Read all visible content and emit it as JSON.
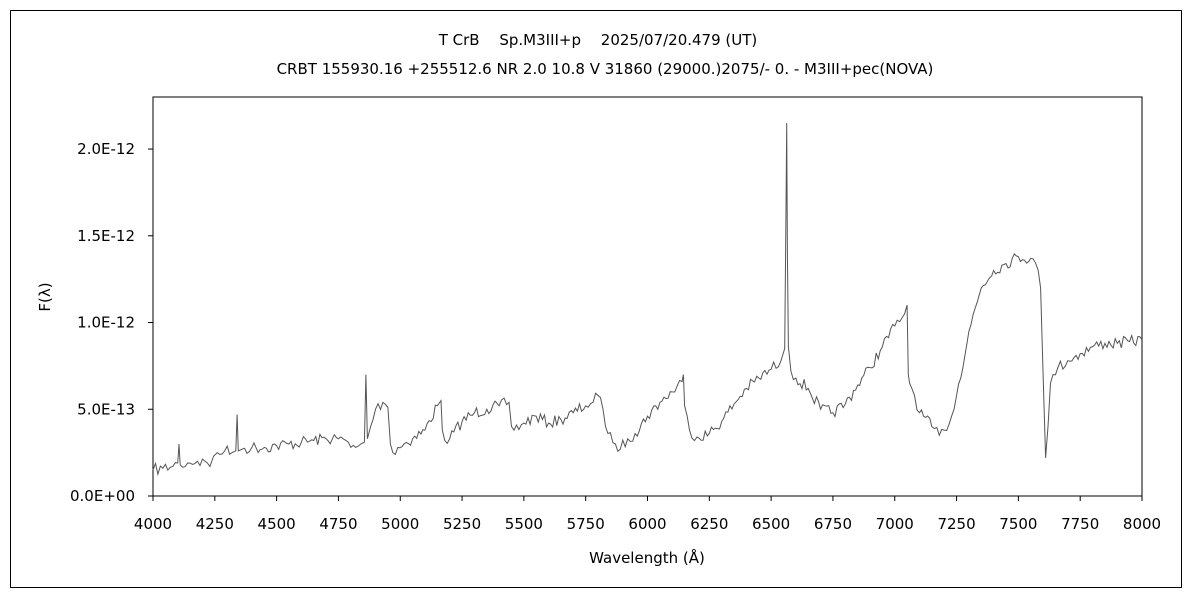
{
  "chart_data": {
    "type": "line",
    "title": "T CrB　 Sp.M3III+p　 2025/07/20.479 (UT)",
    "subtitle": "CRBT 155930.16 +255512.6 NR 2.0 10.8 V 31860 (29000.)2075/-  0. - M3III+pec(NOVA)",
    "xlabel": "Wavelength (Å)",
    "ylabel": "F(λ)",
    "xlim": [
      4000,
      8000
    ],
    "ylim": [
      0,
      2.3e-12
    ],
    "x_ticks": [
      4000,
      4250,
      4500,
      4750,
      5000,
      5250,
      5500,
      5750,
      6000,
      6250,
      6500,
      6750,
      7000,
      7250,
      7500,
      7750,
      8000
    ],
    "x_tick_labels": [
      "4000",
      "4250",
      "4500",
      "4750",
      "5000",
      "5250",
      "5500",
      "5750",
      "6000",
      "6250",
      "6500",
      "6750",
      "7000",
      "7250",
      "7500",
      "7750",
      "8000"
    ],
    "y_ticks": [
      0,
      5e-13,
      1e-12,
      1.5e-12,
      2e-12
    ],
    "y_tick_labels": [
      "0.0E+00",
      "5.0E-13",
      "1.0E-12",
      "1.5E-12",
      "2.0E-12"
    ],
    "grid": false,
    "line_color": "#555555",
    "series": [
      {
        "x": [
          4000,
          4040,
          4080,
          4100,
          4105,
          4110,
          4140,
          4180,
          4220,
          4230,
          4245,
          4260,
          4290,
          4320,
          4335,
          4340,
          4345,
          4360,
          4400,
          4450,
          4500,
          4550,
          4600,
          4650,
          4700,
          4750,
          4790,
          4800,
          4820,
          4840,
          4855,
          4861,
          4867,
          4880,
          4900,
          4930,
          4950,
          4960,
          4970,
          4990,
          5050,
          5100,
          5150,
          5165,
          5170,
          5180,
          5200,
          5250,
          5300,
          5350,
          5400,
          5440,
          5450,
          5460,
          5500,
          5550,
          5600,
          5650,
          5700,
          5750,
          5780,
          5800,
          5820,
          5840,
          5870,
          5890,
          5920,
          5950,
          6000,
          6050,
          6100,
          6140,
          6145,
          6150,
          6170,
          6200,
          6250,
          6300,
          6350,
          6400,
          6450,
          6500,
          6540,
          6555,
          6560,
          6563,
          6566,
          6570,
          6580,
          6600,
          6650,
          6700,
          6750,
          6800,
          6850,
          6900,
          6950,
          7000,
          7040,
          7050,
          7055,
          7060,
          7080,
          7100,
          7150,
          7180,
          7200,
          7230,
          7250,
          7300,
          7350,
          7400,
          7450,
          7500,
          7550,
          7580,
          7590,
          7600,
          7610,
          7620,
          7630,
          7640,
          7660,
          7700,
          7750,
          7800,
          7850,
          7900,
          7950,
          8000
        ],
        "y": [
          1.5e-13,
          1.6e-13,
          1.7e-13,
          1.9e-13,
          3e-13,
          1.8e-13,
          1.9e-13,
          2e-13,
          1.9e-13,
          1.7e-13,
          2.3e-13,
          2.5e-13,
          2.6e-13,
          2.5e-13,
          2.6e-13,
          4.7e-13,
          2.6e-13,
          2.7e-13,
          2.8e-13,
          2.8e-13,
          2.9e-13,
          3e-13,
          3.1e-13,
          3.2e-13,
          3.3e-13,
          3.3e-13,
          3.1e-13,
          2.8e-13,
          2.8e-13,
          3e-13,
          3.1e-13,
          7e-13,
          3.3e-13,
          4e-13,
          5e-13,
          5.4e-13,
          5.1e-13,
          3e-13,
          2.5e-13,
          2.8e-13,
          3.3e-13,
          3.8e-13,
          5.2e-13,
          5.5e-13,
          3.8e-13,
          3.2e-13,
          3.3e-13,
          4.3e-13,
          4.8e-13,
          5e-13,
          5.2e-13,
          5.4e-13,
          4e-13,
          3.8e-13,
          4.2e-13,
          4.6e-13,
          4.2e-13,
          4.4e-13,
          4.8e-13,
          5.2e-13,
          5.4e-13,
          5.8e-13,
          5e-13,
          3.6e-13,
          3e-13,
          2.7e-13,
          3.3e-13,
          3.6e-13,
          4.6e-13,
          5.4e-13,
          6e-13,
          6.6e-13,
          7e-13,
          5.2e-13,
          3.8e-13,
          3.4e-13,
          3.6e-13,
          4.3e-13,
          5.3e-13,
          6.2e-13,
          6.8e-13,
          7.3e-13,
          7.8e-13,
          8.5e-13,
          1.65e-12,
          2.15e-12,
          1.4e-12,
          8.6e-13,
          7.2e-13,
          6.8e-13,
          6.2e-13,
          5e-13,
          4.8e-13,
          5.3e-13,
          6.4e-13,
          7.4e-13,
          8.6e-13,
          9.8e-13,
          1.05e-12,
          1.1e-12,
          7e-13,
          6.5e-13,
          5.8e-13,
          4.8e-13,
          4e-13,
          3.5e-13,
          3.8e-13,
          4.6e-13,
          5.8e-13,
          9.5e-13,
          1.2e-12,
          1.3e-12,
          1.34e-12,
          1.38e-12,
          1.37e-12,
          1.3e-12,
          1.2e-12,
          7e-13,
          2.2e-13,
          4e-13,
          6.5e-13,
          7e-13,
          7.4e-13,
          7.8e-13,
          8.2e-13,
          8.6e-13,
          8.8e-13,
          8.8e-13,
          8.9e-13,
          9e-13
        ]
      }
    ]
  }
}
